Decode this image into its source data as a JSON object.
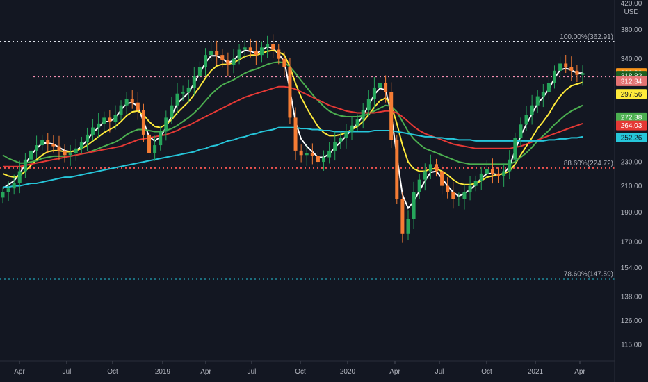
{
  "chart_data": {
    "type": "candlestick",
    "currency": "USD",
    "ylim": [
      108,
      425
    ],
    "log_scale": true,
    "grid": false,
    "y_ticks": [
      "420.00",
      "380.00",
      "340.00",
      "322.22",
      "318.82",
      "312.96",
      "312.34",
      "297.56",
      "272.38",
      "264.03",
      "252.26",
      "230.00",
      "210.00",
      "190.00",
      "170.00",
      "154.00",
      "138.00",
      "126.00",
      "115.00"
    ],
    "y_tick_values": [
      420,
      380,
      340,
      322.22,
      318.82,
      312.96,
      312.34,
      297.56,
      272.38,
      264.03,
      252.26,
      230,
      210,
      190,
      170,
      154,
      138,
      126,
      115
    ],
    "x_ticks": [
      "Apr",
      "Jul",
      "Oct",
      "2019",
      "Apr",
      "Jul",
      "Oct",
      "2020",
      "Apr",
      "Jul",
      "Oct",
      "2021",
      "Apr"
    ],
    "fib_levels": [
      {
        "label": "100.00%(362.91)",
        "value": 362.91,
        "color": "#e0e3eb"
      },
      {
        "label": "88.60%(224.72)",
        "value": 224.72,
        "color": "#ef5350"
      },
      {
        "label": "78.60%(147.59)",
        "value": 147.59,
        "color": "#26c6da"
      }
    ],
    "horizontal_line": {
      "value": 318.0,
      "color": "#f48fb1"
    },
    "price_tags": [
      {
        "label": "322.22",
        "value": 322.22,
        "bg": "#f7931a",
        "fg": "#ffffff"
      },
      {
        "label": "318.82",
        "value": 318.82,
        "bg": "#1b5e20",
        "fg": "#ffffff"
      },
      {
        "label": "312.96",
        "value": 312.96,
        "bg": "#ffffff",
        "fg": "#131722"
      },
      {
        "label": "312.34",
        "value": 312.34,
        "bg": "#e57373",
        "fg": "#ffffff"
      },
      {
        "label": "297.56",
        "value": 297.56,
        "bg": "#ffeb3b",
        "fg": "#131722"
      },
      {
        "label": "272.38",
        "value": 272.38,
        "bg": "#4caf50",
        "fg": "#ffffff"
      },
      {
        "label": "264.03",
        "value": 264.03,
        "bg": "#e53935",
        "fg": "#ffffff"
      },
      {
        "label": "252.26",
        "value": 252.26,
        "bg": "#26c6da",
        "fg": "#131722"
      }
    ],
    "close": [
      205,
      208,
      212,
      222,
      232,
      240,
      245,
      250,
      246,
      244,
      240,
      236,
      238,
      242,
      248,
      255,
      262,
      266,
      272,
      268,
      275,
      285,
      292,
      288,
      280,
      255,
      238,
      245,
      258,
      272,
      285,
      298,
      300,
      305,
      318,
      330,
      345,
      350,
      345,
      338,
      332,
      340,
      352,
      355,
      350,
      345,
      355,
      360,
      352,
      340,
      330,
      272,
      240,
      236,
      238,
      235,
      230,
      234,
      240,
      248,
      252,
      258,
      264,
      270,
      280,
      292,
      305,
      310,
      300,
      250,
      200,
      175,
      185,
      205,
      215,
      222,
      228,
      222,
      210,
      205,
      200,
      200,
      205,
      210,
      214,
      220,
      224,
      220,
      218,
      222,
      232,
      252,
      265,
      275,
      285,
      295,
      300,
      310,
      325,
      334,
      330,
      325,
      320,
      322
    ],
    "series": [
      {
        "name": "",
        "color": "#ffffff",
        "values": [
          208,
          211,
          214,
          220,
          228,
          236,
          242,
          247,
          247,
          246,
          243,
          240,
          239,
          240,
          244,
          250,
          257,
          262,
          268,
          268,
          272,
          280,
          287,
          288,
          284,
          268,
          253,
          249,
          253,
          262,
          274,
          287,
          293,
          299,
          310,
          322,
          335,
          344,
          344,
          340,
          335,
          338,
          346,
          351,
          350,
          347,
          351,
          356,
          354,
          346,
          337,
          302,
          268,
          251,
          244,
          239,
          234,
          234,
          237,
          243,
          248,
          254,
          260,
          266,
          274,
          285,
          297,
          304,
          302,
          276,
          235,
          203,
          193,
          198,
          206,
          214,
          221,
          222,
          216,
          210,
          205,
          202,
          204,
          207,
          211,
          216,
          220,
          220,
          219,
          220,
          226,
          240,
          254,
          265,
          276,
          287,
          294,
          303,
          316,
          326,
          328,
          326,
          322,
          322
        ]
      },
      {
        "name": "",
        "color": "#ffeb3b",
        "values": [
          220,
          218,
          217,
          218,
          222,
          227,
          232,
          236,
          239,
          240,
          240,
          239,
          239,
          240,
          242,
          245,
          249,
          253,
          257,
          260,
          263,
          268,
          274,
          278,
          279,
          275,
          268,
          263,
          262,
          265,
          270,
          277,
          283,
          289,
          297,
          306,
          316,
          325,
          331,
          333,
          333,
          335,
          339,
          343,
          345,
          345,
          347,
          350,
          351,
          349,
          345,
          330,
          310,
          294,
          282,
          272,
          263,
          257,
          254,
          254,
          255,
          257,
          260,
          263,
          268,
          275,
          283,
          290,
          293,
          285,
          266,
          245,
          230,
          224,
          222,
          222,
          224,
          224,
          222,
          219,
          215,
          212,
          211,
          211,
          212,
          214,
          217,
          218,
          219,
          220,
          222,
          228,
          236,
          244,
          252,
          261,
          268,
          276,
          286,
          295,
          302,
          307,
          309,
          311
        ]
      },
      {
        "name": "",
        "color": "#4caf50",
        "values": [
          236,
          233,
          231,
          229,
          229,
          230,
          231,
          233,
          234,
          235,
          235,
          235,
          235,
          236,
          237,
          238,
          240,
          242,
          244,
          246,
          248,
          251,
          255,
          258,
          260,
          260,
          259,
          258,
          258,
          259,
          261,
          264,
          268,
          272,
          277,
          283,
          290,
          297,
          303,
          308,
          311,
          314,
          318,
          322,
          325,
          327,
          330,
          333,
          335,
          336,
          335,
          330,
          322,
          313,
          305,
          297,
          290,
          284,
          279,
          276,
          274,
          273,
          273,
          273,
          274,
          276,
          279,
          282,
          285,
          284,
          278,
          268,
          258,
          251,
          246,
          242,
          240,
          238,
          236,
          234,
          232,
          230,
          229,
          228,
          228,
          228,
          228,
          228,
          228,
          228,
          228,
          230,
          234,
          238,
          243,
          249,
          254,
          259,
          265,
          270,
          275,
          279,
          282,
          285
        ]
      },
      {
        "name": "",
        "color": "#e53935",
        "values": [
          226,
          226,
          226,
          226,
          227,
          228,
          229,
          230,
          231,
          232,
          233,
          234,
          235,
          236,
          237,
          238,
          239,
          240,
          241,
          242,
          243,
          244,
          246,
          248,
          250,
          251,
          252,
          253,
          254,
          255,
          257,
          259,
          262,
          264,
          267,
          270,
          273,
          276,
          279,
          282,
          285,
          288,
          291,
          294,
          296,
          298,
          300,
          302,
          304,
          306,
          306,
          305,
          303,
          300,
          297,
          294,
          291,
          288,
          285,
          283,
          281,
          279,
          278,
          277,
          277,
          277,
          277,
          278,
          279,
          279,
          277,
          273,
          268,
          263,
          259,
          256,
          254,
          252,
          250,
          248,
          246,
          245,
          244,
          243,
          242,
          242,
          242,
          242,
          242,
          242,
          242,
          243,
          244,
          246,
          248,
          250,
          252,
          254,
          256,
          258,
          260,
          262,
          264,
          266
        ]
      },
      {
        "name": "",
        "color": "#26c6da",
        "values": [
          209,
          209,
          210,
          210,
          211,
          212,
          212,
          213,
          214,
          215,
          216,
          217,
          217,
          218,
          219,
          220,
          221,
          222,
          223,
          224,
          225,
          226,
          227,
          228,
          229,
          230,
          231,
          232,
          233,
          234,
          235,
          236,
          237,
          238,
          239,
          241,
          242,
          244,
          245,
          247,
          249,
          250,
          252,
          253,
          255,
          256,
          258,
          259,
          260,
          262,
          262,
          262,
          262,
          261,
          261,
          260,
          260,
          259,
          259,
          258,
          258,
          258,
          258,
          258,
          258,
          258,
          259,
          259,
          259,
          259,
          258,
          257,
          256,
          255,
          254,
          253,
          253,
          252,
          252,
          251,
          251,
          250,
          250,
          250,
          249,
          249,
          249,
          249,
          249,
          249,
          249,
          249,
          249,
          249,
          249,
          249,
          249,
          250,
          250,
          251,
          251,
          252,
          252,
          253
        ]
      }
    ]
  }
}
